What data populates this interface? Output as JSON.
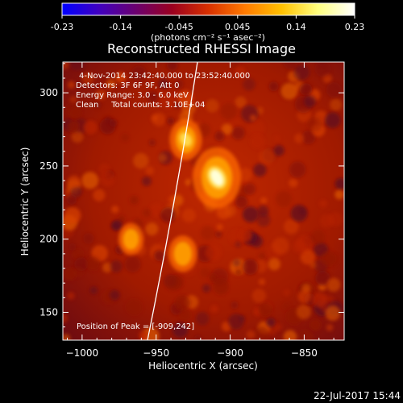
{
  "colorbar": {
    "ticks": [
      "-0.23",
      "-0.14",
      "-0.045",
      "0.045",
      "0.14",
      "0.23"
    ],
    "units": "(photons cm⁻² s⁻¹ asec⁻²)",
    "stops": [
      "#0000ff",
      "#4000c0",
      "#6a0070",
      "#9a0020",
      "#d83000",
      "#ff7a00",
      "#ffc000",
      "#ffff80",
      "#ffffff"
    ]
  },
  "chart_data": {
    "type": "heatmap",
    "title": "Reconstructed RHESSI Image",
    "xlabel": "Heliocentric X (arcsec)",
    "ylabel": "Heliocentric Y (arcsec)",
    "xlim": [
      -1013,
      -823
    ],
    "ylim": [
      131,
      321
    ],
    "xticks": [
      -1000,
      -950,
      -900,
      -850
    ],
    "yticks": [
      150,
      200,
      250,
      300
    ],
    "xtick_labels": [
      "−1000",
      "−950",
      "−900",
      "−850"
    ],
    "ytick_labels": [
      "150",
      "200",
      "250",
      "300"
    ],
    "info_lines": [
      "4-Nov-2014 23:42:40.000 to 23:52:40.000",
      "Detectors: 3F 6F 9F, Att 0",
      "Energy Range: 3.0 - 6.0 keV",
      "Clean     Total counts: 3.10E+04"
    ],
    "peak_label": "Position of Peak = [-909,242]",
    "sources": [
      {
        "x": -909,
        "y": 242,
        "intensity": 1.0
      },
      {
        "x": -930,
        "y": 268,
        "intensity": 0.55
      },
      {
        "x": -932,
        "y": 190,
        "intensity": 0.45
      },
      {
        "x": -967,
        "y": 200,
        "intensity": 0.35
      }
    ]
  },
  "footer_date": "22-Jul-2017 15:44"
}
